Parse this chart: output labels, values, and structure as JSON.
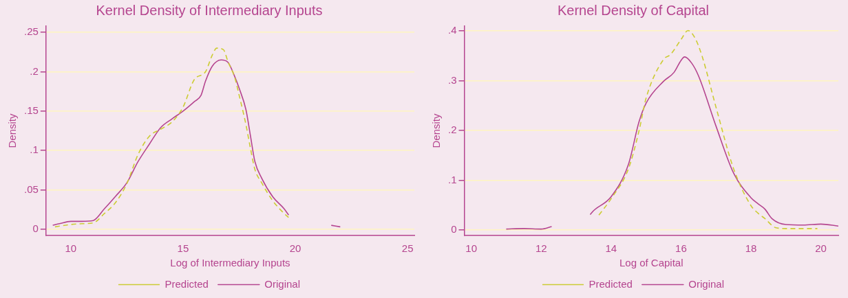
{
  "chart_data": [
    {
      "type": "line",
      "title": "Kernel Density of Intermediary Inputs",
      "xlabel": "Log of Intermediary Inputs",
      "ylabel": "Density",
      "xlim": [
        8.9,
        25.3
      ],
      "xticks": [
        10,
        15,
        20,
        25
      ],
      "ylim": [
        -0.008,
        0.258
      ],
      "yticks": [
        0,
        {
          "value": 0.05,
          "label": ".05"
        },
        {
          "value": 0.1,
          "label": ".1"
        },
        {
          "value": 0.15,
          "label": ".15"
        },
        {
          "value": 0.2,
          "label": ".2"
        },
        {
          "value": 0.25,
          "label": ".25"
        }
      ],
      "grid": "y",
      "legend": "bottom",
      "series": [
        {
          "name": "Predicted",
          "color": "#cccc33",
          "line_style": "dashed",
          "x": [
            9.3,
            10,
            10.5,
            11,
            11.5,
            12,
            12.5,
            13,
            13.5,
            14,
            14.5,
            15,
            15.5,
            16,
            16.3,
            16.5,
            16.8,
            17,
            17.3,
            17.5,
            17.8,
            18,
            18.2,
            18.5,
            19,
            19.5,
            19.7
          ],
          "values": [
            0.003,
            0.006,
            0.007,
            0.008,
            0.02,
            0.034,
            0.058,
            0.095,
            0.118,
            0.127,
            0.136,
            0.155,
            0.19,
            0.2,
            0.221,
            0.23,
            0.228,
            0.213,
            0.193,
            0.17,
            0.133,
            0.103,
            0.076,
            0.059,
            0.036,
            0.02,
            0.015
          ]
        },
        {
          "name": "Original",
          "color": "#b5458f",
          "line_style": "solid",
          "x": [
            9.2,
            9.5,
            10,
            10.5,
            11,
            11.5,
            12,
            12.5,
            13,
            13.5,
            14,
            14.5,
            15,
            15.5,
            15.8,
            16,
            16.3,
            16.7,
            17,
            17.3,
            17.5,
            17.8,
            18,
            18.2,
            18.5,
            19,
            19.5,
            19.7,
            20.5,
            21.6,
            22
          ],
          "values": [
            0.005,
            0.007,
            0.01,
            0.01,
            0.011,
            0.026,
            0.042,
            0.059,
            0.086,
            0.108,
            0.129,
            0.14,
            0.15,
            0.162,
            0.17,
            0.188,
            0.207,
            0.215,
            0.212,
            0.194,
            0.179,
            0.152,
            0.119,
            0.086,
            0.065,
            0.041,
            0.026,
            0.018,
            null,
            0.005,
            0.003
          ]
        }
      ]
    },
    {
      "type": "line",
      "title": "Kernel Density of Capital",
      "xlabel": "Log of Capital",
      "ylabel": "Density",
      "xlim": [
        9.8,
        20.5
      ],
      "xticks": [
        10,
        12,
        14,
        16,
        18,
        20
      ],
      "ylim": [
        -0.011,
        0.41
      ],
      "yticks": [
        0,
        {
          "value": 0.1,
          "label": ".1"
        },
        {
          "value": 0.2,
          "label": ".2"
        },
        {
          "value": 0.3,
          "label": ".3"
        },
        {
          "value": 0.4,
          "label": ".4"
        }
      ],
      "grid": "y",
      "legend": "bottom",
      "series": [
        {
          "name": "Predicted",
          "color": "#cccc33",
          "line_style": "dashed",
          "x": [
            13.65,
            14,
            14.5,
            14.8,
            15,
            15.5,
            15.7,
            16,
            16.2,
            16.4,
            16.6,
            17,
            17.5,
            18,
            18.2,
            18.4,
            18.7,
            19,
            19.5,
            19.9
          ],
          "values": [
            0.03,
            0.063,
            0.124,
            0.2,
            0.265,
            0.343,
            0.353,
            0.383,
            0.401,
            0.386,
            0.35,
            0.247,
            0.124,
            0.049,
            0.034,
            0.023,
            0.005,
            0.003,
            0.003,
            0.003
          ]
        },
        {
          "name": "Original",
          "color": "#b5458f",
          "line_style": "solid",
          "x": [
            11,
            11.5,
            12,
            12.3,
            12.8,
            13.4,
            13.5,
            14,
            14.5,
            14.8,
            15,
            15.5,
            15.8,
            16,
            16.1,
            16.3,
            16.5,
            17,
            17.5,
            18,
            18.2,
            18.4,
            18.6,
            19,
            19.5,
            20,
            20.5
          ],
          "values": [
            0.002,
            0.003,
            0.002,
            0.007,
            null,
            0.031,
            0.039,
            0.067,
            0.133,
            0.218,
            0.255,
            0.299,
            0.317,
            0.341,
            0.348,
            0.336,
            0.31,
            0.209,
            0.115,
            0.065,
            0.053,
            0.042,
            0.023,
            0.011,
            0.01,
            0.012,
            0.008
          ]
        }
      ]
    }
  ]
}
